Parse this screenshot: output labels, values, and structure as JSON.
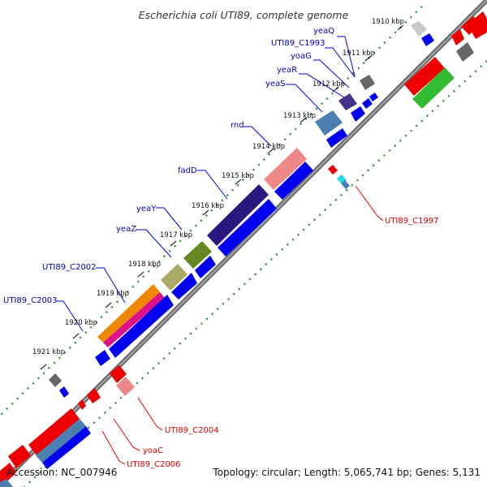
{
  "title": "Escherichia coli UTI89, complete genome",
  "footer": {
    "accession": "Accession: NC_007946",
    "stats": "Topology: circular; Length: 5,065,741 bp; Genes: 5,131"
  },
  "ticks": [
    "1910 kbp",
    "1911 kbp",
    "1912 kbp",
    "1913 kbp",
    "1914 kbp",
    "1915 kbp",
    "1916 kbp",
    "1917 kbp",
    "1918 kbp",
    "1919 kbp",
    "1920 kbp",
    "1921 kbp"
  ],
  "gene_labels_forward": [
    "yeaQ",
    "UTI89_C1993",
    "yoaG",
    "yeaR",
    "yeaS",
    "rnd",
    "fadD",
    "yeaY",
    "yeaZ",
    "UTI89_C2002",
    "UTI89_C2003"
  ],
  "gene_labels_reverse": [
    "UTI89_C1997",
    "UTI89_C2004",
    "yoaC",
    "UTI89_C2006"
  ],
  "colors": {
    "forward_label": "#0000bb",
    "reverse_label": "#dd0000",
    "backbone": "#7a7a7a",
    "cds_forward": "#0000ee",
    "cds_reverse": "#ee0000",
    "dots": "#228822"
  }
}
